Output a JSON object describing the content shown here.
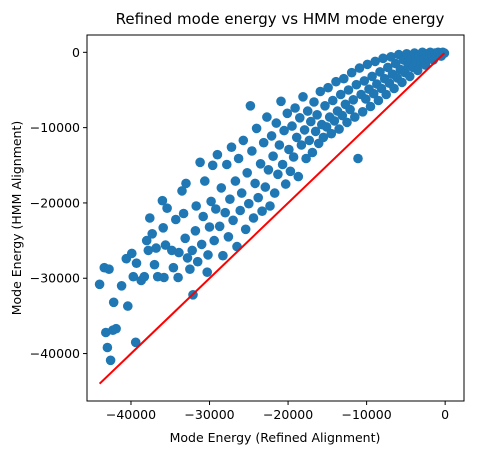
{
  "chart_data": {
    "type": "scatter",
    "title": "Refined mode energy vs HMM mode energy",
    "xlabel": "Mode Energy (Refined Alignment)",
    "ylabel": "Mode Energy (HMM Alignment)",
    "xlim": [
      -45600,
      2400
    ],
    "ylim": [
      -46300,
      2300
    ],
    "grid": false,
    "x_ticks": [
      -40000,
      -30000,
      -20000,
      -10000,
      0
    ],
    "x_tick_labels": [
      "−40000",
      "−30000",
      "−20000",
      "−10000",
      "0"
    ],
    "y_ticks": [
      0,
      -10000,
      -20000,
      -30000,
      -40000
    ],
    "y_tick_labels": [
      "0",
      "−10000",
      "−20000",
      "−30000",
      "−40000"
    ],
    "colors": {
      "points": "#1f77b4",
      "line": "#ff0000"
    },
    "series": [
      {
        "type": "scatter",
        "points": [
          [
            -44000,
            -30800
          ],
          [
            -43400,
            -28600
          ],
          [
            -43200,
            -37200
          ],
          [
            -43000,
            -39200
          ],
          [
            -42800,
            -28800
          ],
          [
            -42600,
            -40900
          ],
          [
            -42300,
            -36900
          ],
          [
            -42200,
            -33200
          ],
          [
            -41900,
            -36700
          ],
          [
            -41200,
            -31000
          ],
          [
            -40600,
            -27400
          ],
          [
            -40400,
            -33700
          ],
          [
            -39900,
            -26700
          ],
          [
            -39700,
            -29800
          ],
          [
            -39400,
            -38500
          ],
          [
            -39300,
            -28000
          ],
          [
            -38700,
            -30300
          ],
          [
            -38300,
            -29800
          ],
          [
            -38000,
            -25000
          ],
          [
            -37800,
            -26300
          ],
          [
            -37600,
            -22000
          ],
          [
            -37300,
            -24100
          ],
          [
            -37000,
            -28200
          ],
          [
            -36800,
            -26000
          ],
          [
            -36600,
            -29800
          ],
          [
            -36000,
            -19700
          ],
          [
            -35900,
            -23300
          ],
          [
            -35800,
            -29900
          ],
          [
            -35600,
            -25600
          ],
          [
            -35400,
            -20700
          ],
          [
            -34800,
            -26300
          ],
          [
            -34600,
            -28600
          ],
          [
            -34300,
            -22200
          ],
          [
            -34000,
            -29900
          ],
          [
            -33900,
            -26600
          ],
          [
            -33500,
            -18400
          ],
          [
            -33300,
            -21400
          ],
          [
            -33100,
            -24700
          ],
          [
            -33000,
            -17400
          ],
          [
            -32800,
            -27300
          ],
          [
            -32500,
            -28800
          ],
          [
            -32200,
            -26300
          ],
          [
            -32100,
            -32200
          ],
          [
            -31800,
            -23700
          ],
          [
            -31700,
            -20400
          ],
          [
            -31500,
            -27800
          ],
          [
            -31200,
            -14600
          ],
          [
            -31000,
            -25500
          ],
          [
            -30800,
            -21800
          ],
          [
            -30600,
            -17100
          ],
          [
            -30300,
            -29200
          ],
          [
            -30200,
            -26900
          ],
          [
            -30000,
            -23200
          ],
          [
            -29800,
            -19800
          ],
          [
            -29600,
            -15000
          ],
          [
            -29400,
            -25000
          ],
          [
            -29200,
            -20800
          ],
          [
            -29000,
            -13600
          ],
          [
            -28700,
            -23100
          ],
          [
            -28500,
            -18000
          ],
          [
            -28300,
            -27000
          ],
          [
            -28000,
            -21300
          ],
          [
            -27800,
            -14900
          ],
          [
            -27600,
            -24500
          ],
          [
            -27400,
            -19500
          ],
          [
            -27200,
            -12600
          ],
          [
            -27000,
            -22300
          ],
          [
            -26700,
            -17100
          ],
          [
            -26500,
            -25800
          ],
          [
            -26300,
            -14100
          ],
          [
            -26100,
            -21000
          ],
          [
            -25900,
            -18700
          ],
          [
            -25700,
            -11700
          ],
          [
            -25400,
            -23500
          ],
          [
            -25200,
            -16000
          ],
          [
            -25000,
            -20100
          ],
          [
            -24800,
            -7100
          ],
          [
            -24600,
            -13100
          ],
          [
            -24400,
            -22000
          ],
          [
            -24200,
            -17400
          ],
          [
            -24000,
            -10100
          ],
          [
            -23800,
            -19300
          ],
          [
            -23500,
            -14800
          ],
          [
            -23300,
            -21100
          ],
          [
            -23100,
            -12000
          ],
          [
            -22900,
            -17900
          ],
          [
            -22700,
            -8600
          ],
          [
            -22500,
            -15600
          ],
          [
            -22300,
            -20400
          ],
          [
            -22100,
            -11100
          ],
          [
            -21900,
            -13800
          ],
          [
            -21700,
            -18700
          ],
          [
            -21500,
            -9400
          ],
          [
            -21300,
            -16200
          ],
          [
            -21100,
            -12300
          ],
          [
            -20900,
            -6500
          ],
          [
            -20700,
            -14900
          ],
          [
            -20500,
            -10400
          ],
          [
            -20300,
            -17500
          ],
          [
            -20100,
            -8100
          ],
          [
            -19900,
            -12900
          ],
          [
            -19700,
            -15800
          ],
          [
            -19500,
            -9800
          ],
          [
            -19300,
            -13900
          ],
          [
            -19100,
            -7400
          ],
          [
            -18900,
            -11300
          ],
          [
            -18700,
            -16500
          ],
          [
            -18500,
            -8700
          ],
          [
            -18300,
            -12300
          ],
          [
            -18100,
            -5900
          ],
          [
            -17900,
            -10300
          ],
          [
            -17700,
            -14100
          ],
          [
            -17500,
            -7800
          ],
          [
            -17300,
            -11700
          ],
          [
            -17100,
            -9200
          ],
          [
            -16900,
            -13300
          ],
          [
            -16700,
            -6600
          ],
          [
            -16500,
            -10500
          ],
          [
            -16300,
            -8300
          ],
          [
            -16100,
            -12100
          ],
          [
            -15900,
            -5200
          ],
          [
            -15700,
            -9600
          ],
          [
            -15500,
            -11300
          ],
          [
            -15300,
            -7100
          ],
          [
            -15100,
            -9900
          ],
          [
            -14900,
            -4700
          ],
          [
            -14700,
            -8600
          ],
          [
            -14500,
            -10800
          ],
          [
            -14300,
            -6400
          ],
          [
            -14100,
            -9100
          ],
          [
            -13900,
            -3900
          ],
          [
            -13700,
            -7800
          ],
          [
            -13500,
            -10200
          ],
          [
            -13300,
            -5600
          ],
          [
            -13100,
            -8400
          ],
          [
            -12900,
            -3500
          ],
          [
            -12700,
            -6900
          ],
          [
            -12500,
            -9300
          ],
          [
            -12300,
            -5000
          ],
          [
            -12100,
            -7600
          ],
          [
            -11900,
            -2700
          ],
          [
            -11700,
            -6300
          ],
          [
            -11500,
            -8600
          ],
          [
            -11300,
            -4300
          ],
          [
            -11100,
            -14100
          ],
          [
            -10900,
            -2100
          ],
          [
            -10700,
            -5600
          ],
          [
            -10500,
            -7900
          ],
          [
            -10300,
            -3800
          ],
          [
            -10100,
            -6200
          ],
          [
            -9900,
            -1600
          ],
          [
            -9700,
            -4900
          ],
          [
            -9500,
            -7200
          ],
          [
            -9300,
            -3200
          ],
          [
            -9100,
            -5500
          ],
          [
            -8900,
            -1200
          ],
          [
            -8700,
            -4200
          ],
          [
            -8500,
            -6400
          ],
          [
            -8300,
            -2600
          ],
          [
            -8100,
            -4800
          ],
          [
            -7900,
            -800
          ],
          [
            -7700,
            -3500
          ],
          [
            -7500,
            -5600
          ],
          [
            -7300,
            -2000
          ],
          [
            -7100,
            -4100
          ],
          [
            -6900,
            -600
          ],
          [
            -6700,
            -2900
          ],
          [
            -6500,
            -4800
          ],
          [
            -6300,
            -1500
          ],
          [
            -6100,
            -3400
          ],
          [
            -5900,
            -300
          ],
          [
            -5700,
            -2300
          ],
          [
            -5500,
            -4000
          ],
          [
            -5300,
            -1000
          ],
          [
            -5100,
            -2700
          ],
          [
            -4900,
            -200
          ],
          [
            -4700,
            -1700
          ],
          [
            -4500,
            -3200
          ],
          [
            -4300,
            -700
          ],
          [
            -4100,
            -2000
          ],
          [
            -3900,
            -100
          ],
          [
            -3700,
            -1200
          ],
          [
            -3500,
            -2400
          ],
          [
            -3300,
            -400
          ],
          [
            -3100,
            -1400
          ],
          [
            -2900,
            0
          ],
          [
            -2700,
            -800
          ],
          [
            -2500,
            -1700
          ],
          [
            -2300,
            -200
          ],
          [
            -2100,
            -900
          ],
          [
            -1900,
            0
          ],
          [
            -1700,
            -400
          ],
          [
            -1500,
            -1000
          ],
          [
            -1300,
            -100
          ],
          [
            -1100,
            -500
          ],
          [
            -900,
            0
          ],
          [
            -700,
            -200
          ],
          [
            -500,
            -500
          ],
          [
            -300,
            0
          ],
          [
            -100,
            -100
          ]
        ]
      },
      {
        "type": "line",
        "points": [
          [
            -44000,
            -44000
          ],
          [
            -100,
            -100
          ]
        ]
      }
    ]
  }
}
